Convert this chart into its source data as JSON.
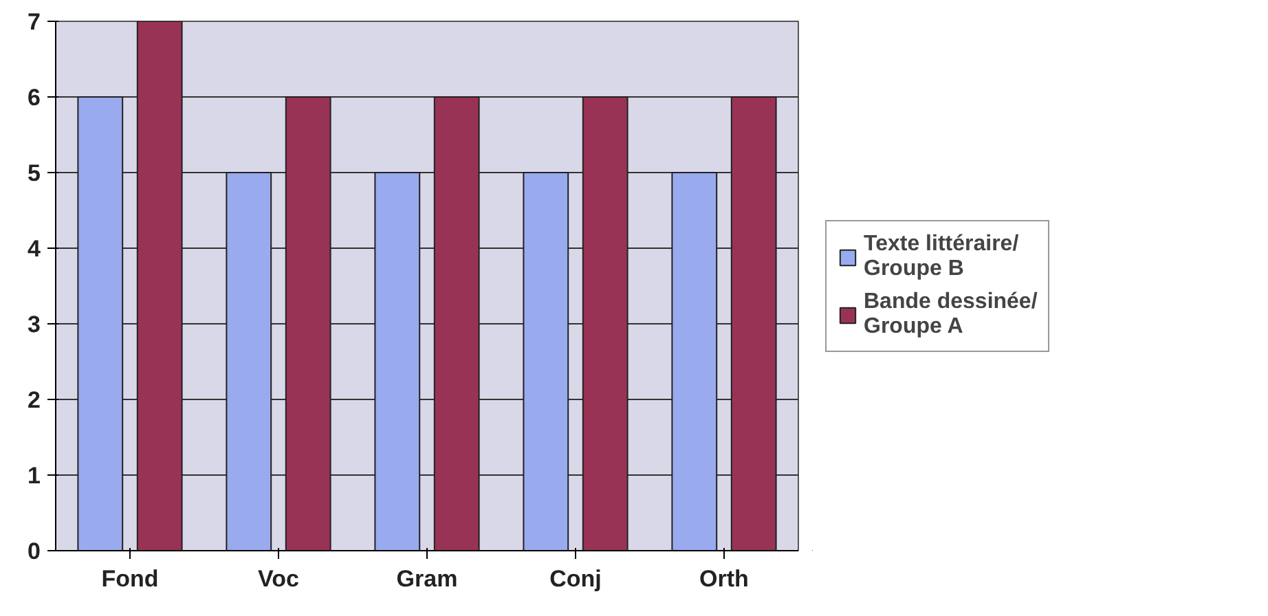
{
  "chart_data": {
    "type": "bar",
    "categories": [
      "Fond",
      "Voc",
      "Gram",
      "Conj",
      "Orth"
    ],
    "series": [
      {
        "name": "Texte littéraire/ Groupe B",
        "color": "#99aaee",
        "values": [
          6,
          5,
          5,
          5,
          5
        ]
      },
      {
        "name": "Bande dessinée/ Groupe A",
        "color": "#993355",
        "values": [
          7,
          6,
          6,
          6,
          6
        ]
      }
    ],
    "ylim": [
      0,
      7
    ],
    "yticks": [
      0,
      1,
      2,
      3,
      4,
      5,
      6,
      7
    ],
    "grid": "y",
    "legend": "right"
  }
}
